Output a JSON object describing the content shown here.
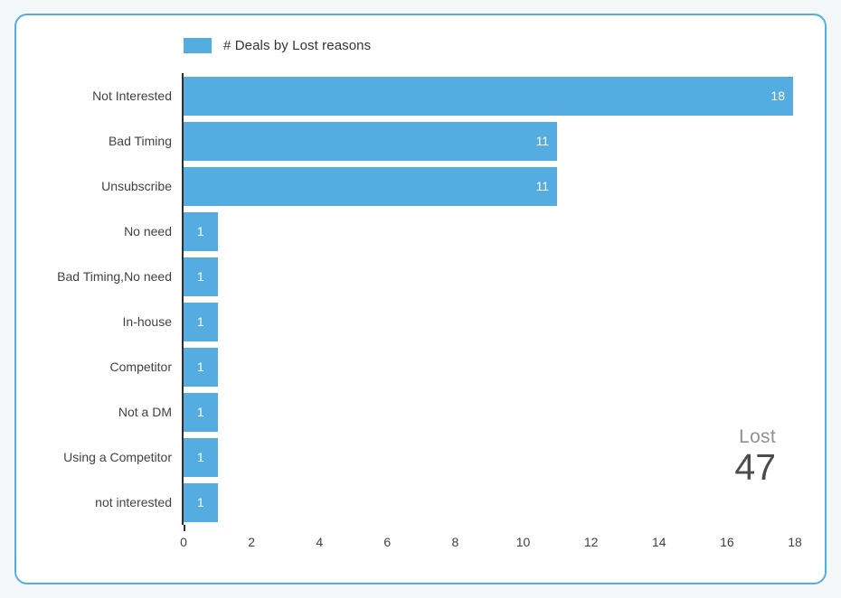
{
  "page": {
    "background": "#f4f7f8"
  },
  "card": {
    "border_color": "#54ace0",
    "background": "#ffffff"
  },
  "legend": {
    "label": "# Deals by Lost reasons",
    "swatch_color": "#54ace0"
  },
  "chart_data": {
    "type": "bar",
    "orientation": "horizontal",
    "title": "# Deals by Lost reasons",
    "categories": [
      "Not Interested",
      "Bad Timing",
      "Unsubscribe",
      "No need",
      "Bad Timing,No need",
      "In-house",
      "Competitor",
      "Not a DM",
      "Using a Competitor",
      "not interested"
    ],
    "values": [
      18,
      11,
      11,
      1,
      1,
      1,
      1,
      1,
      1,
      1
    ],
    "xlabel": "",
    "ylabel": "",
    "xlim": [
      0,
      18
    ],
    "x_ticks": [
      0,
      2,
      4,
      6,
      8,
      10,
      12,
      14,
      16,
      18
    ],
    "bar_color": "#54ace0",
    "value_label_color": "#ffffff",
    "axis_line_color": "#2e2e2e",
    "grid": false,
    "legend_position": "top-left"
  },
  "summary": {
    "label": "Lost",
    "value": "47"
  }
}
